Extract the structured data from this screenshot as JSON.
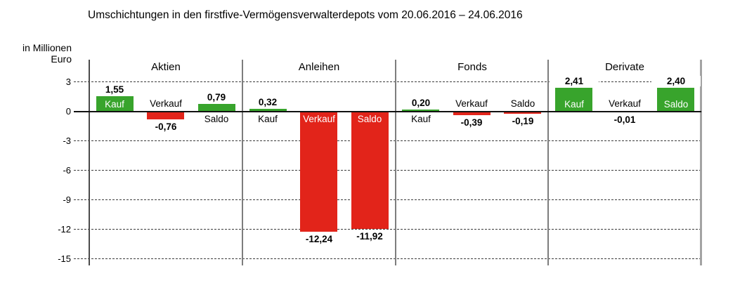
{
  "title": "Umschichtungen in den firstfive-Vermögensverwalterdepots vom 20.06.2016 – 24.06.2016",
  "y_axis": {
    "line1": "in Millionen",
    "line2": "Euro",
    "ticks": [
      3,
      0,
      -3,
      -6,
      -9,
      -12,
      -15
    ]
  },
  "chart_data": {
    "type": "bar",
    "title": "Umschichtungen in den firstfive-Vermögensverwalterdepots vom 20.06.2016 – 24.06.2016",
    "ylabel": "in Millionen Euro",
    "ylim": [
      -15,
      3
    ],
    "grid": "dashed-horizontal",
    "legend_position": "none",
    "categories": [
      "Aktien",
      "Anleihen",
      "Fonds",
      "Derivate"
    ],
    "series": [
      {
        "name": "Kauf",
        "values": [
          1.55,
          0.32,
          0.2,
          2.41
        ]
      },
      {
        "name": "Verkauf",
        "values": [
          -0.76,
          -12.24,
          -0.39,
          -0.01
        ]
      },
      {
        "name": "Saldo",
        "values": [
          0.79,
          -11.92,
          -0.19,
          2.4
        ]
      }
    ],
    "colors": {
      "positive": "#38a42c",
      "negative": "#e2241a"
    },
    "groups": [
      {
        "name": "Aktien",
        "bars": [
          {
            "label": "Kauf",
            "value": 1.55,
            "display": "1,55",
            "label_inside": true
          },
          {
            "label": "Verkauf",
            "value": -0.76,
            "display": "-0,76",
            "label_inside": false
          },
          {
            "label": "Saldo",
            "value": 0.79,
            "display": "0,79",
            "label_inside": false
          }
        ]
      },
      {
        "name": "Anleihen",
        "bars": [
          {
            "label": "Kauf",
            "value": 0.32,
            "display": "0,32",
            "label_inside": false
          },
          {
            "label": "Verkauf",
            "value": -12.24,
            "display": "-12,24",
            "label_inside": true
          },
          {
            "label": "Saldo",
            "value": -11.92,
            "display": "-11,92",
            "label_inside": true
          }
        ]
      },
      {
        "name": "Fonds",
        "bars": [
          {
            "label": "Kauf",
            "value": 0.2,
            "display": "0,20",
            "label_inside": false
          },
          {
            "label": "Verkauf",
            "value": -0.39,
            "display": "-0,39",
            "label_inside": false
          },
          {
            "label": "Saldo",
            "value": -0.19,
            "display": "-0,19",
            "label_inside": false
          }
        ]
      },
      {
        "name": "Derivate",
        "bars": [
          {
            "label": "Kauf",
            "value": 2.41,
            "display": "2,41",
            "label_inside": true
          },
          {
            "label": "Verkauf",
            "value": -0.01,
            "display": "-0,01",
            "label_inside": false
          },
          {
            "label": "Saldo",
            "value": 2.4,
            "display": "2,40",
            "label_inside": true
          }
        ]
      }
    ]
  }
}
